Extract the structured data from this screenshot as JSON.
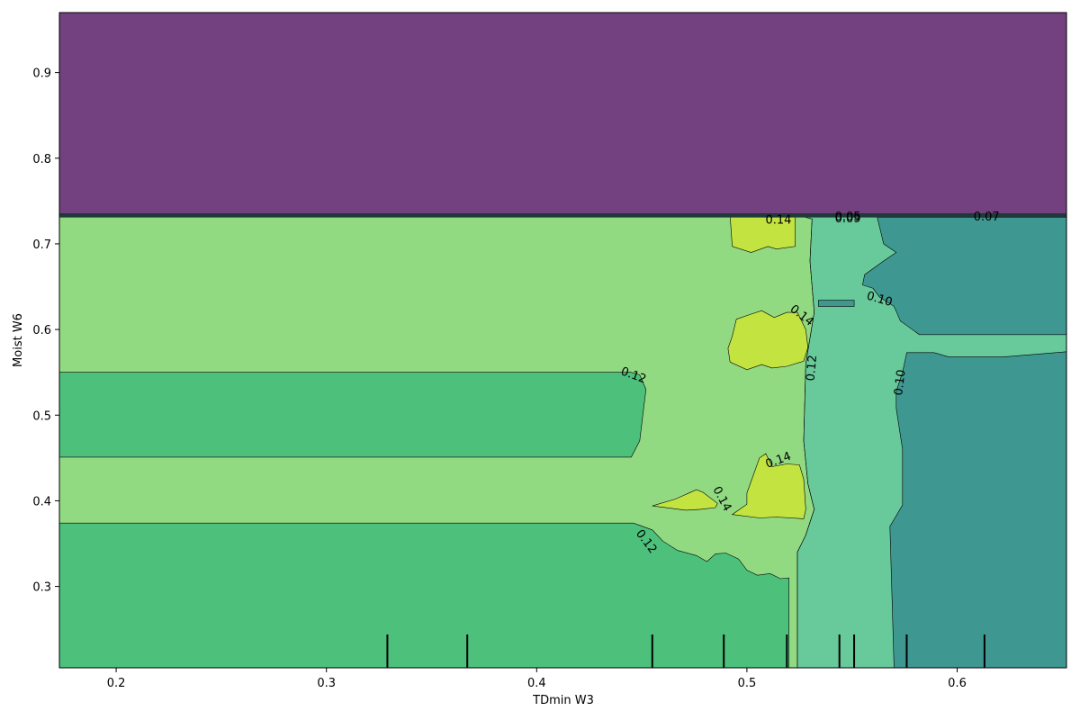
{
  "colors": {
    "level_005": "#440154",
    "level_007": "#3e4a89",
    "level_010": "#31868d",
    "level_012": "#35b779",
    "level_014": "#6ece58",
    "level_016": "#d3e52a",
    "contour_line": "#000000",
    "region_alpha": 0.75
  },
  "chart_data": {
    "type": "contour",
    "title": "",
    "xlabel": "TDmin W3",
    "ylabel": "Moist W6",
    "xlim": [
      0.173,
      0.652
    ],
    "ylim": [
      0.205,
      0.97
    ],
    "x_ticks": [
      0.2,
      0.3,
      0.4,
      0.5,
      0.6
    ],
    "x_tick_labels": [
      "0.2",
      "0.3",
      "0.4",
      "0.5",
      "0.6"
    ],
    "y_ticks": [
      0.3,
      0.4,
      0.5,
      0.6,
      0.7,
      0.8,
      0.9
    ],
    "y_tick_labels": [
      "0.3",
      "0.4",
      "0.5",
      "0.6",
      "0.7",
      "0.8",
      "0.9"
    ],
    "grid": false,
    "legend": "none",
    "contour_levels": [
      "0.05",
      "0.07",
      "0.10",
      "0.12",
      "0.14"
    ],
    "rug_x": [
      0.329,
      0.367,
      0.455,
      0.489,
      0.519,
      0.544,
      0.551,
      0.576,
      0.613
    ],
    "regions": [
      {
        "level": "level_005",
        "points": [
          [
            0.173,
            0.97
          ],
          [
            0.652,
            0.97
          ],
          [
            0.652,
            0.735
          ],
          [
            0.173,
            0.735
          ]
        ]
      },
      {
        "level": "level_014",
        "points": [
          [
            0.173,
            0.733
          ],
          [
            0.525,
            0.733
          ],
          [
            0.531,
            0.729
          ],
          [
            0.53,
            0.68
          ],
          [
            0.532,
            0.62
          ],
          [
            0.528,
            0.56
          ],
          [
            0.527,
            0.47
          ],
          [
            0.529,
            0.42
          ],
          [
            0.532,
            0.39
          ],
          [
            0.528,
            0.36
          ],
          [
            0.524,
            0.34
          ],
          [
            0.524,
            0.205
          ],
          [
            0.173,
            0.205
          ]
        ]
      },
      {
        "level": "level_012",
        "points": [
          [
            0.173,
            0.55
          ],
          [
            0.445,
            0.55
          ],
          [
            0.449,
            0.547
          ],
          [
            0.452,
            0.53
          ],
          [
            0.451,
            0.51
          ],
          [
            0.449,
            0.47
          ],
          [
            0.445,
            0.451
          ],
          [
            0.173,
            0.451
          ]
        ]
      },
      {
        "level": "level_012",
        "points": [
          [
            0.173,
            0.374
          ],
          [
            0.446,
            0.374
          ],
          [
            0.455,
            0.366
          ],
          [
            0.46,
            0.353
          ],
          [
            0.467,
            0.342
          ],
          [
            0.476,
            0.336
          ],
          [
            0.481,
            0.329
          ],
          [
            0.485,
            0.338
          ],
          [
            0.49,
            0.339
          ],
          [
            0.496,
            0.332
          ],
          [
            0.5,
            0.319
          ],
          [
            0.505,
            0.313
          ],
          [
            0.511,
            0.315
          ],
          [
            0.516,
            0.309
          ],
          [
            0.52,
            0.31
          ],
          [
            0.52,
            0.205
          ],
          [
            0.173,
            0.205
          ]
        ]
      },
      {
        "level": "level_012",
        "points": [
          [
            0.525,
            0.733
          ],
          [
            0.652,
            0.733
          ],
          [
            0.652,
            0.205
          ],
          [
            0.524,
            0.205
          ],
          [
            0.524,
            0.34
          ],
          [
            0.528,
            0.36
          ],
          [
            0.532,
            0.39
          ],
          [
            0.529,
            0.42
          ],
          [
            0.527,
            0.47
          ],
          [
            0.528,
            0.56
          ],
          [
            0.532,
            0.62
          ],
          [
            0.53,
            0.68
          ],
          [
            0.531,
            0.729
          ]
        ]
      },
      {
        "level": "level_010",
        "points": [
          [
            0.562,
            0.731
          ],
          [
            0.652,
            0.731
          ],
          [
            0.652,
            0.594
          ],
          [
            0.589,
            0.594
          ],
          [
            0.582,
            0.594
          ],
          [
            0.573,
            0.61
          ],
          [
            0.57,
            0.627
          ],
          [
            0.563,
            0.638
          ],
          [
            0.56,
            0.648
          ],
          [
            0.555,
            0.652
          ],
          [
            0.556,
            0.664
          ],
          [
            0.565,
            0.68
          ],
          [
            0.571,
            0.69
          ],
          [
            0.565,
            0.7
          ]
        ]
      },
      {
        "level": "level_010",
        "points": [
          [
            0.652,
            0.574
          ],
          [
            0.622,
            0.568
          ],
          [
            0.596,
            0.568
          ],
          [
            0.589,
            0.573
          ],
          [
            0.576,
            0.573
          ],
          [
            0.574,
            0.55
          ],
          [
            0.571,
            0.528
          ],
          [
            0.571,
            0.508
          ],
          [
            0.574,
            0.46
          ],
          [
            0.574,
            0.395
          ],
          [
            0.568,
            0.37
          ],
          [
            0.57,
            0.205
          ],
          [
            0.652,
            0.205
          ]
        ]
      },
      {
        "level": "level_010",
        "points": [
          [
            0.534,
            0.634
          ],
          [
            0.551,
            0.634
          ],
          [
            0.551,
            0.627
          ],
          [
            0.534,
            0.627
          ]
        ]
      },
      {
        "level": "level_016",
        "points": [
          [
            0.492,
            0.733
          ],
          [
            0.523,
            0.733
          ],
          [
            0.523,
            0.697
          ],
          [
            0.514,
            0.694
          ],
          [
            0.51,
            0.697
          ],
          [
            0.502,
            0.69
          ],
          [
            0.493,
            0.697
          ]
        ]
      },
      {
        "level": "level_016",
        "points": [
          [
            0.495,
            0.612
          ],
          [
            0.502,
            0.618
          ],
          [
            0.507,
            0.622
          ],
          [
            0.513,
            0.614
          ],
          [
            0.519,
            0.62
          ],
          [
            0.524,
            0.62
          ],
          [
            0.528,
            0.6
          ],
          [
            0.529,
            0.579
          ],
          [
            0.527,
            0.563
          ],
          [
            0.519,
            0.557
          ],
          [
            0.512,
            0.555
          ],
          [
            0.507,
            0.559
          ],
          [
            0.5,
            0.553
          ],
          [
            0.492,
            0.562
          ],
          [
            0.491,
            0.578
          ],
          [
            0.493,
            0.592
          ]
        ]
      },
      {
        "level": "level_016",
        "points": [
          [
            0.5,
            0.409
          ],
          [
            0.506,
            0.45
          ],
          [
            0.509,
            0.455
          ],
          [
            0.512,
            0.44
          ],
          [
            0.519,
            0.443
          ],
          [
            0.525,
            0.442
          ],
          [
            0.527,
            0.425
          ],
          [
            0.528,
            0.39
          ],
          [
            0.527,
            0.379
          ],
          [
            0.514,
            0.381
          ],
          [
            0.506,
            0.38
          ],
          [
            0.493,
            0.384
          ],
          [
            0.5,
            0.396
          ]
        ]
      },
      {
        "level": "level_016",
        "points": [
          [
            0.455,
            0.394
          ],
          [
            0.466,
            0.402
          ],
          [
            0.476,
            0.413
          ],
          [
            0.479,
            0.41
          ],
          [
            0.486,
            0.397
          ],
          [
            0.485,
            0.392
          ],
          [
            0.478,
            0.39
          ],
          [
            0.471,
            0.389
          ]
        ]
      }
    ],
    "contour_labels": [
      {
        "text": "0.14",
        "x": 0.515,
        "y": 0.727,
        "angle": 0
      },
      {
        "text": "0.05",
        "x": 0.548,
        "y": 0.731,
        "angle": 0
      },
      {
        "text": "0.09",
        "x": 0.548,
        "y": 0.729,
        "angle": 0
      },
      {
        "text": "0.07",
        "x": 0.614,
        "y": 0.731,
        "angle": 0
      },
      {
        "text": "0.10",
        "x": 0.563,
        "y": 0.635,
        "angle": 16
      },
      {
        "text": "0.14",
        "x": 0.526,
        "y": 0.616,
        "angle": 38
      },
      {
        "text": "0.12",
        "x": 0.531,
        "y": 0.555,
        "angle": -85
      },
      {
        "text": "0.10",
        "x": 0.573,
        "y": 0.538,
        "angle": -83
      },
      {
        "text": "0.12",
        "x": 0.446,
        "y": 0.546,
        "angle": 20
      },
      {
        "text": "0.14",
        "x": 0.515,
        "y": 0.447,
        "angle": -20
      },
      {
        "text": "0.14",
        "x": 0.488,
        "y": 0.402,
        "angle": 62
      },
      {
        "text": "0.12",
        "x": 0.452,
        "y": 0.352,
        "angle": 53
      }
    ]
  }
}
